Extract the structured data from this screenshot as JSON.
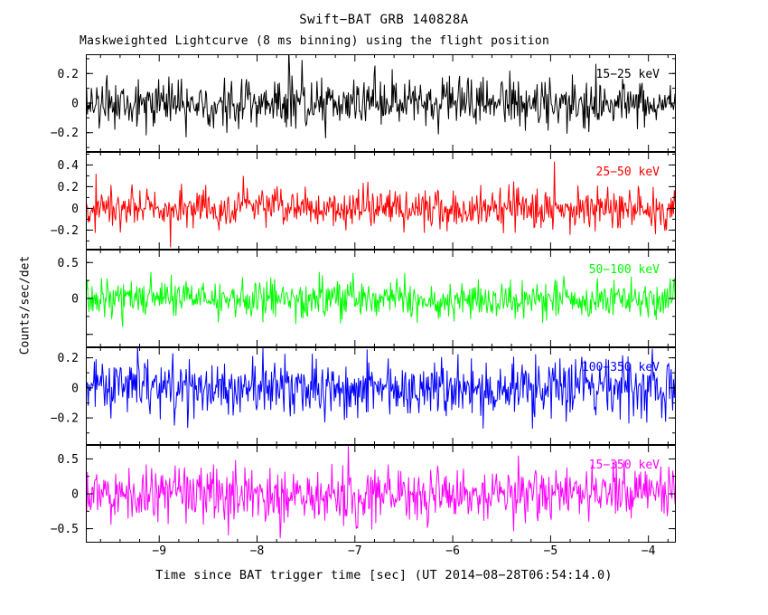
{
  "title": "Swift−BAT GRB 140828A",
  "subtitle": "Maskweighted Lightcurve (8 ms binning) using the flight position",
  "xlabel": "Time since BAT trigger time [sec] (UT 2014−08−28T06:54:14.0)",
  "ylabel": "Counts/sec/det",
  "chart_data": {
    "type": "line",
    "description": "Five stacked mask-weighted light-curve panels of pre-trigger background noise, one per energy band, 8 ms binning, mean ~0 counts/sec/det",
    "x_range": [
      -9.75,
      -3.72
    ],
    "x_ticks": [
      -9,
      -8,
      -7,
      -6,
      -5,
      -4
    ],
    "x_minor_step": 0.2,
    "grid": false,
    "legend_position": "inside-top-right-per-panel",
    "panels": [
      {
        "label": "15−25 keV",
        "color": "#000000",
        "ylim": [
          -0.33,
          0.33
        ],
        "tick_marks": [
          -0.2,
          0,
          0.2
        ],
        "tick_labels": [
          -0.2,
          0,
          0.2
        ],
        "y_minor_step": 0.1,
        "noise_mean": 0,
        "noise_sigma": 0.085,
        "seed": 1013
      },
      {
        "label": "25−50 keV",
        "color": "#ff0000",
        "ylim": [
          -0.38,
          0.52
        ],
        "tick_marks": [
          -0.2,
          0,
          0.2,
          0.4
        ],
        "tick_labels": [
          -0.2,
          0,
          0.2,
          0.4
        ],
        "y_minor_step": 0.1,
        "noise_mean": 0,
        "noise_sigma": 0.095,
        "seed": 2087
      },
      {
        "label": "50−100 keV",
        "color": "#00ff00",
        "ylim": [
          -0.68,
          0.68
        ],
        "tick_marks": [
          -0.5,
          0,
          0.5
        ],
        "tick_labels": [
          0,
          0.5
        ],
        "y_minor_step": 0.25,
        "noise_mean": 0,
        "noise_sigma": 0.13,
        "seed": 3169
      },
      {
        "label": "100−350 keV",
        "color": "#0000ff",
        "ylim": [
          -0.38,
          0.27
        ],
        "tick_marks": [
          -0.2,
          0,
          0.2
        ],
        "tick_labels": [
          -0.2,
          0,
          0.2
        ],
        "y_minor_step": 0.1,
        "noise_mean": 0,
        "noise_sigma": 0.095,
        "seed": 4241
      },
      {
        "label": "15−350 keV",
        "color": "#ff00ff",
        "ylim": [
          -0.7,
          0.7
        ],
        "tick_marks": [
          -0.5,
          0,
          0.5
        ],
        "tick_labels": [
          -0.5,
          0,
          0.5
        ],
        "y_minor_step": 0.25,
        "noise_mean": 0,
        "noise_sigma": 0.19,
        "seed": 5323
      }
    ],
    "points_per_panel": 754,
    "bin_seconds": 0.008
  }
}
